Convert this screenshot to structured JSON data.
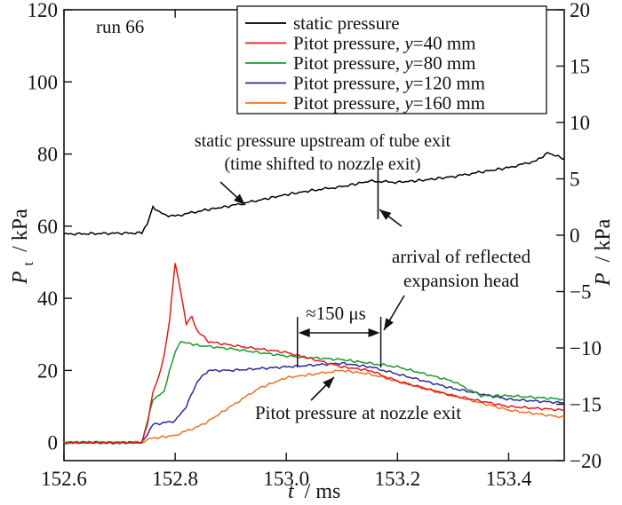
{
  "chart_data": {
    "type": "line",
    "annotation_run": "run 66",
    "x_axis": {
      "title_var": "t",
      "title_unit": "/ ms",
      "lim": [
        152.6,
        153.5
      ],
      "ticks": [
        152.6,
        152.8,
        153.0,
        153.2,
        153.4
      ],
      "tick_labels": [
        "152.6",
        "152.8",
        "153.0",
        "153.2",
        "153.4"
      ]
    },
    "y_left": {
      "title_var": "P",
      "title_sub": "t",
      "title_unit": "/ kPa",
      "lim": [
        -5,
        120
      ],
      "ticks": [
        0,
        20,
        40,
        60,
        80,
        100,
        120
      ],
      "tick_labels": [
        "0",
        "20",
        "40",
        "60",
        "80",
        "100",
        "120"
      ]
    },
    "y_right": {
      "title_var": "P",
      "title_unit": "/ kPa",
      "lim": [
        -20,
        20
      ],
      "ticks": [
        -20,
        -15,
        -10,
        -5,
        0,
        5,
        10,
        15,
        20
      ],
      "tick_labels": [
        "−20",
        "−15",
        "−10",
        "−5",
        "0",
        "5",
        "10",
        "15",
        "20"
      ]
    },
    "legend": {
      "placement": "top-right",
      "entries": [
        {
          "prefix": "static pressure",
          "var": "",
          "suffix": "",
          "color": "#000000"
        },
        {
          "prefix": "Pitot pressure, ",
          "var": "y",
          "suffix": "=40 mm",
          "color": "#e31a1c"
        },
        {
          "prefix": "Pitot pressure, ",
          "var": "y",
          "suffix": "=80 mm",
          "color": "#1a9a2a"
        },
        {
          "prefix": "Pitot pressure, ",
          "var": "y",
          "suffix": "=120 mm",
          "color": "#2b2b9a"
        },
        {
          "prefix": "Pitot pressure, ",
          "var": "y",
          "suffix": "=160 mm",
          "color": "#f07020"
        }
      ]
    },
    "series": [
      {
        "name": "static pressure",
        "axis": "right",
        "color": "#000000",
        "x": [
          152.6,
          152.74,
          152.75,
          152.76,
          152.78,
          152.8,
          152.85,
          152.9,
          152.95,
          153.0,
          153.05,
          153.1,
          153.15,
          153.2,
          153.25,
          153.3,
          153.35,
          153.4,
          153.45,
          153.47,
          153.5
        ],
        "y": [
          0.1,
          0.2,
          1.0,
          2.5,
          1.8,
          1.7,
          2.2,
          2.6,
          3.1,
          3.6,
          4.0,
          4.3,
          4.8,
          4.7,
          4.9,
          5.2,
          5.6,
          6.0,
          6.6,
          7.3,
          6.8
        ]
      },
      {
        "name": "Pitot pressure, y=40 mm",
        "axis": "left",
        "color": "#e31a1c",
        "x": [
          152.6,
          152.74,
          152.75,
          152.76,
          152.77,
          152.78,
          152.79,
          152.8,
          152.81,
          152.82,
          152.83,
          152.84,
          152.86,
          152.9,
          153.0,
          153.1,
          153.15,
          153.2,
          153.3,
          153.4,
          153.5
        ],
        "y": [
          0,
          0,
          5,
          14,
          18,
          24,
          34,
          50,
          42,
          33,
          35,
          31,
          28,
          27,
          25,
          21,
          20,
          17,
          13,
          10,
          9
        ]
      },
      {
        "name": "Pitot pressure, y=80 mm",
        "axis": "left",
        "color": "#1a9a2a",
        "x": [
          152.6,
          152.74,
          152.75,
          152.76,
          152.78,
          152.79,
          152.8,
          152.81,
          152.84,
          152.9,
          153.0,
          153.1,
          153.15,
          153.2,
          153.3,
          153.35,
          153.4,
          153.5
        ],
        "y": [
          0,
          0,
          6,
          12,
          14,
          20,
          25,
          28,
          27,
          26,
          24,
          23,
          22,
          21,
          17,
          13,
          13,
          12
        ]
      },
      {
        "name": "Pitot pressure, y=120 mm",
        "axis": "left",
        "color": "#2b2b9a",
        "x": [
          152.6,
          152.74,
          152.75,
          152.76,
          152.8,
          152.82,
          152.84,
          152.86,
          152.9,
          153.0,
          153.1,
          153.15,
          153.2,
          153.3,
          153.4,
          153.5
        ],
        "y": [
          0,
          0,
          2,
          5,
          6,
          10,
          17,
          20,
          20,
          21,
          22,
          21,
          19,
          15,
          12,
          11
        ]
      },
      {
        "name": "Pitot pressure, y=160 mm",
        "axis": "left",
        "color": "#f07020",
        "x": [
          152.6,
          152.74,
          152.75,
          152.8,
          152.85,
          152.9,
          152.95,
          153.0,
          153.05,
          153.1,
          153.15,
          153.2,
          153.3,
          153.4,
          153.5
        ],
        "y": [
          0,
          0,
          1,
          2,
          5,
          10,
          15,
          18,
          19,
          20,
          19,
          17,
          13,
          9,
          7
        ]
      }
    ],
    "annotations": {
      "upstream_note_line1": "static pressure upstream of tube exit",
      "upstream_note_line2": "(time shifted to nozzle exit)",
      "reflected_line1": "arrival of reflected",
      "reflected_line2": "expansion head",
      "interval_label": "≈150 μs",
      "interval_from": 153.02,
      "interval_to": 153.17,
      "nozzle_note": "Pitot pressure at nozzle exit"
    }
  }
}
